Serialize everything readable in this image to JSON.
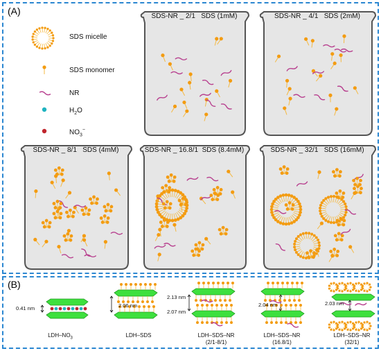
{
  "panel_a": {
    "label": "(A)",
    "legend": [
      {
        "label": "SDS micelle",
        "icon": "micelle-icon"
      },
      {
        "label": "SDS monomer",
        "icon": "monomer-icon"
      },
      {
        "label": "NR",
        "icon": "nr-icon"
      },
      {
        "label_main": "H",
        "label_sub": "2",
        "label_tail": "O",
        "icon": "water-icon",
        "color": "#1fb3c0"
      },
      {
        "label_main": "NO",
        "label_sub": "3",
        "label_sup": "−",
        "icon": "nitrate-icon",
        "color": "#c0252d"
      }
    ],
    "beakers": [
      {
        "ratio": "SDS-NR _ 2/1",
        "conc": "SDS (1mM)"
      },
      {
        "ratio": "SDS-NR _ 4/1",
        "conc": "SDS (2mM)"
      },
      {
        "ratio": "SDS-NR _ 8/1",
        "conc": "SDS (4mM)"
      },
      {
        "ratio": "SDS-NR _ 16.8/1",
        "conc": "SDS (8.4mM)"
      },
      {
        "ratio": "SDS-NR _ 32/1",
        "conc": "SDS (16mM)"
      }
    ]
  },
  "panel_b": {
    "label": "(B)",
    "structures": [
      {
        "caption_line1": "LDH–NO",
        "caption_sub": "3",
        "caption_line2": "",
        "distance": "0.41 nm",
        "distance2": ""
      },
      {
        "caption_line1": "LDH–SDS",
        "caption_sub": "",
        "caption_line2": "",
        "distance": "2.06 nm",
        "distance2": ""
      },
      {
        "caption_line1": "LDH–SDS–NR",
        "caption_sub": "",
        "caption_line2": "(2/1-8/1)",
        "distance": "2.13 nm",
        "distance2": "2.07 nm"
      },
      {
        "caption_line1": "LDH–SDS–NR",
        "caption_sub": "",
        "caption_line2": "(16.8/1)",
        "distance": "2.04 nm",
        "distance2": ""
      },
      {
        "caption_line1": "LDH–SDS–NR",
        "caption_sub": "",
        "caption_line2": "(32/1)",
        "distance": "2.03 nm",
        "distance2": ""
      }
    ]
  },
  "colors": {
    "border": "#2a86d1",
    "beaker_fill": "#e6e6e6",
    "beaker_stroke": "#555555",
    "monomer_head": "#f39c12",
    "monomer_tail": "#f5b942",
    "nr": "#b8408f",
    "ldh": "#3ee03e",
    "water": "#1fb3c0",
    "nitrate": "#c0252d"
  }
}
